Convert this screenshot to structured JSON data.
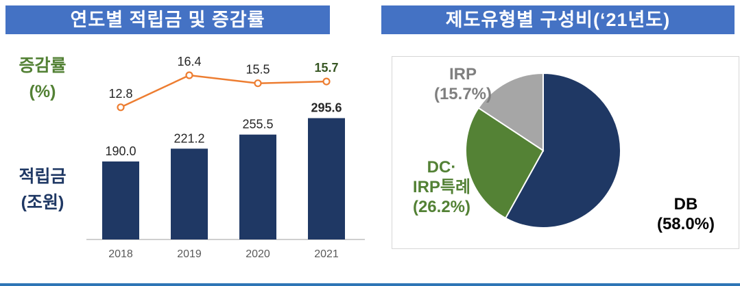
{
  "headers": {
    "left": "연도별 적립금 및 증감률",
    "right": "제도유형별 구성비(‘21년도)"
  },
  "left_chart": {
    "growth_label_line1": "증감률",
    "growth_label_line2": "(%)",
    "reserve_label_line1": "적립금",
    "reserve_label_line2": "(조원)"
  },
  "pie_labels": {
    "irp_line1": "IRP",
    "irp_line2": "(15.7%)",
    "dc_line1": "DC·",
    "dc_line2": "IRP특례",
    "dc_line3": "(26.2%)",
    "db_line1": "DB",
    "db_line2": "(58.0%)"
  },
  "colors": {
    "header_bg": "#4472C4",
    "bar_navy": "#1F3864",
    "line_orange": "#ED7D31",
    "green_text": "#538135",
    "emphasis_green": "#375623",
    "pie_green": "#548235",
    "pie_gray": "#A6A6A6",
    "footer_blue": "#2E75B6"
  },
  "chart_data": [
    {
      "type": "bar",
      "subtype": "combo-bar-line",
      "title": "연도별 적립금 및 증감률",
      "categories": [
        "2018",
        "2019",
        "2020",
        "2021"
      ],
      "series": [
        {
          "name": "적립금(조원)",
          "chart": "bar",
          "values": [
            190.0,
            221.2,
            255.5,
            295.6
          ],
          "labels": [
            "190.0",
            "221.2",
            "255.5",
            "295.6"
          ],
          "color": "#1F3864"
        },
        {
          "name": "증감률(%)",
          "chart": "line",
          "values": [
            12.8,
            16.4,
            15.5,
            15.7
          ],
          "labels": [
            "12.8",
            "16.4",
            "15.5",
            "15.7"
          ],
          "color": "#ED7D31"
        }
      ],
      "ylabel_bar": "적립금(조원)",
      "ylabel_line": "증감률(%)",
      "grid": false,
      "emphasize_last": true
    },
    {
      "type": "pie",
      "title": "제도유형별 구성비(‘21년도)",
      "slices": [
        {
          "label": "DB",
          "value": 58.0,
          "display": "DB (58.0%)",
          "color": "#1F3864"
        },
        {
          "label": "DC·IRP특례",
          "value": 26.2,
          "display": "DC· IRP특례 (26.2%)",
          "color": "#548235"
        },
        {
          "label": "IRP",
          "value": 15.7,
          "display": "IRP (15.7%)",
          "color": "#A6A6A6"
        }
      ],
      "start_angle_deg": -90,
      "direction": "clockwise"
    }
  ]
}
